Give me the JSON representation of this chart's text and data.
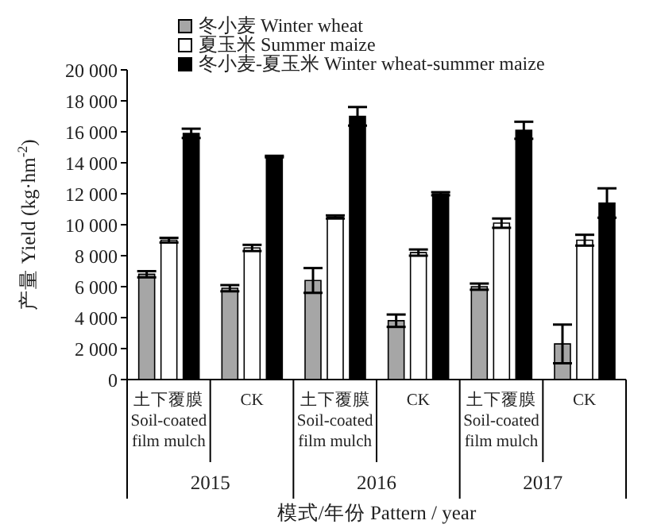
{
  "chart_data": {
    "type": "bar",
    "xlabel": "模式/年份 Pattern / year",
    "ylabel": "产量 Yield (kg·hm$^{-2}$)",
    "categories": [
      "土下覆膜\nSoil-coated\nfilm mulch",
      "CK",
      "土下覆膜\nSoil-coated\nfilm mulch",
      "CK",
      "土下覆膜\nSoil-coated\nfilm mulch",
      "CK"
    ],
    "annotations": [
      "2015",
      "2016",
      "2017"
    ],
    "series": [
      {
        "name": "冬小麦 Winter wheat",
        "color": "#a6a6a6",
        "values": [
          6800,
          5900,
          6400,
          3800,
          6000,
          2300
        ],
        "errors": [
          200,
          200,
          800,
          400,
          200,
          1250
        ]
      },
      {
        "name": "夏玉米 Summer maize",
        "color": "#ffffff",
        "values": [
          9000,
          8500,
          10500,
          8200,
          10100,
          9000
        ],
        "errors": [
          150,
          200,
          100,
          200,
          300,
          350
        ]
      },
      {
        "name": "冬小麦-夏玉米 Winter wheat-summer maize",
        "color": "#000000",
        "values": [
          15900,
          14400,
          17000,
          12000,
          16100,
          11400
        ],
        "errors": [
          300,
          50,
          600,
          100,
          550,
          950
        ]
      }
    ],
    "ylim": [
      0,
      20000
    ],
    "yticks": [
      {
        "value": 0,
        "label": "0"
      },
      {
        "value": 2000,
        "label": "2 000"
      },
      {
        "value": 4000,
        "label": "4 000"
      },
      {
        "value": 6000,
        "label": "6 000"
      },
      {
        "value": 8000,
        "label": "8 000"
      },
      {
        "value": 10000,
        "label": "10 000"
      },
      {
        "value": 12000,
        "label": "12 000"
      },
      {
        "value": 14000,
        "label": "14 000"
      },
      {
        "value": 16000,
        "label": "16 000"
      },
      {
        "value": 18000,
        "label": "18 000"
      },
      {
        "value": 20000,
        "label": "20 000"
      }
    ],
    "grid": false,
    "legend": "top left"
  }
}
